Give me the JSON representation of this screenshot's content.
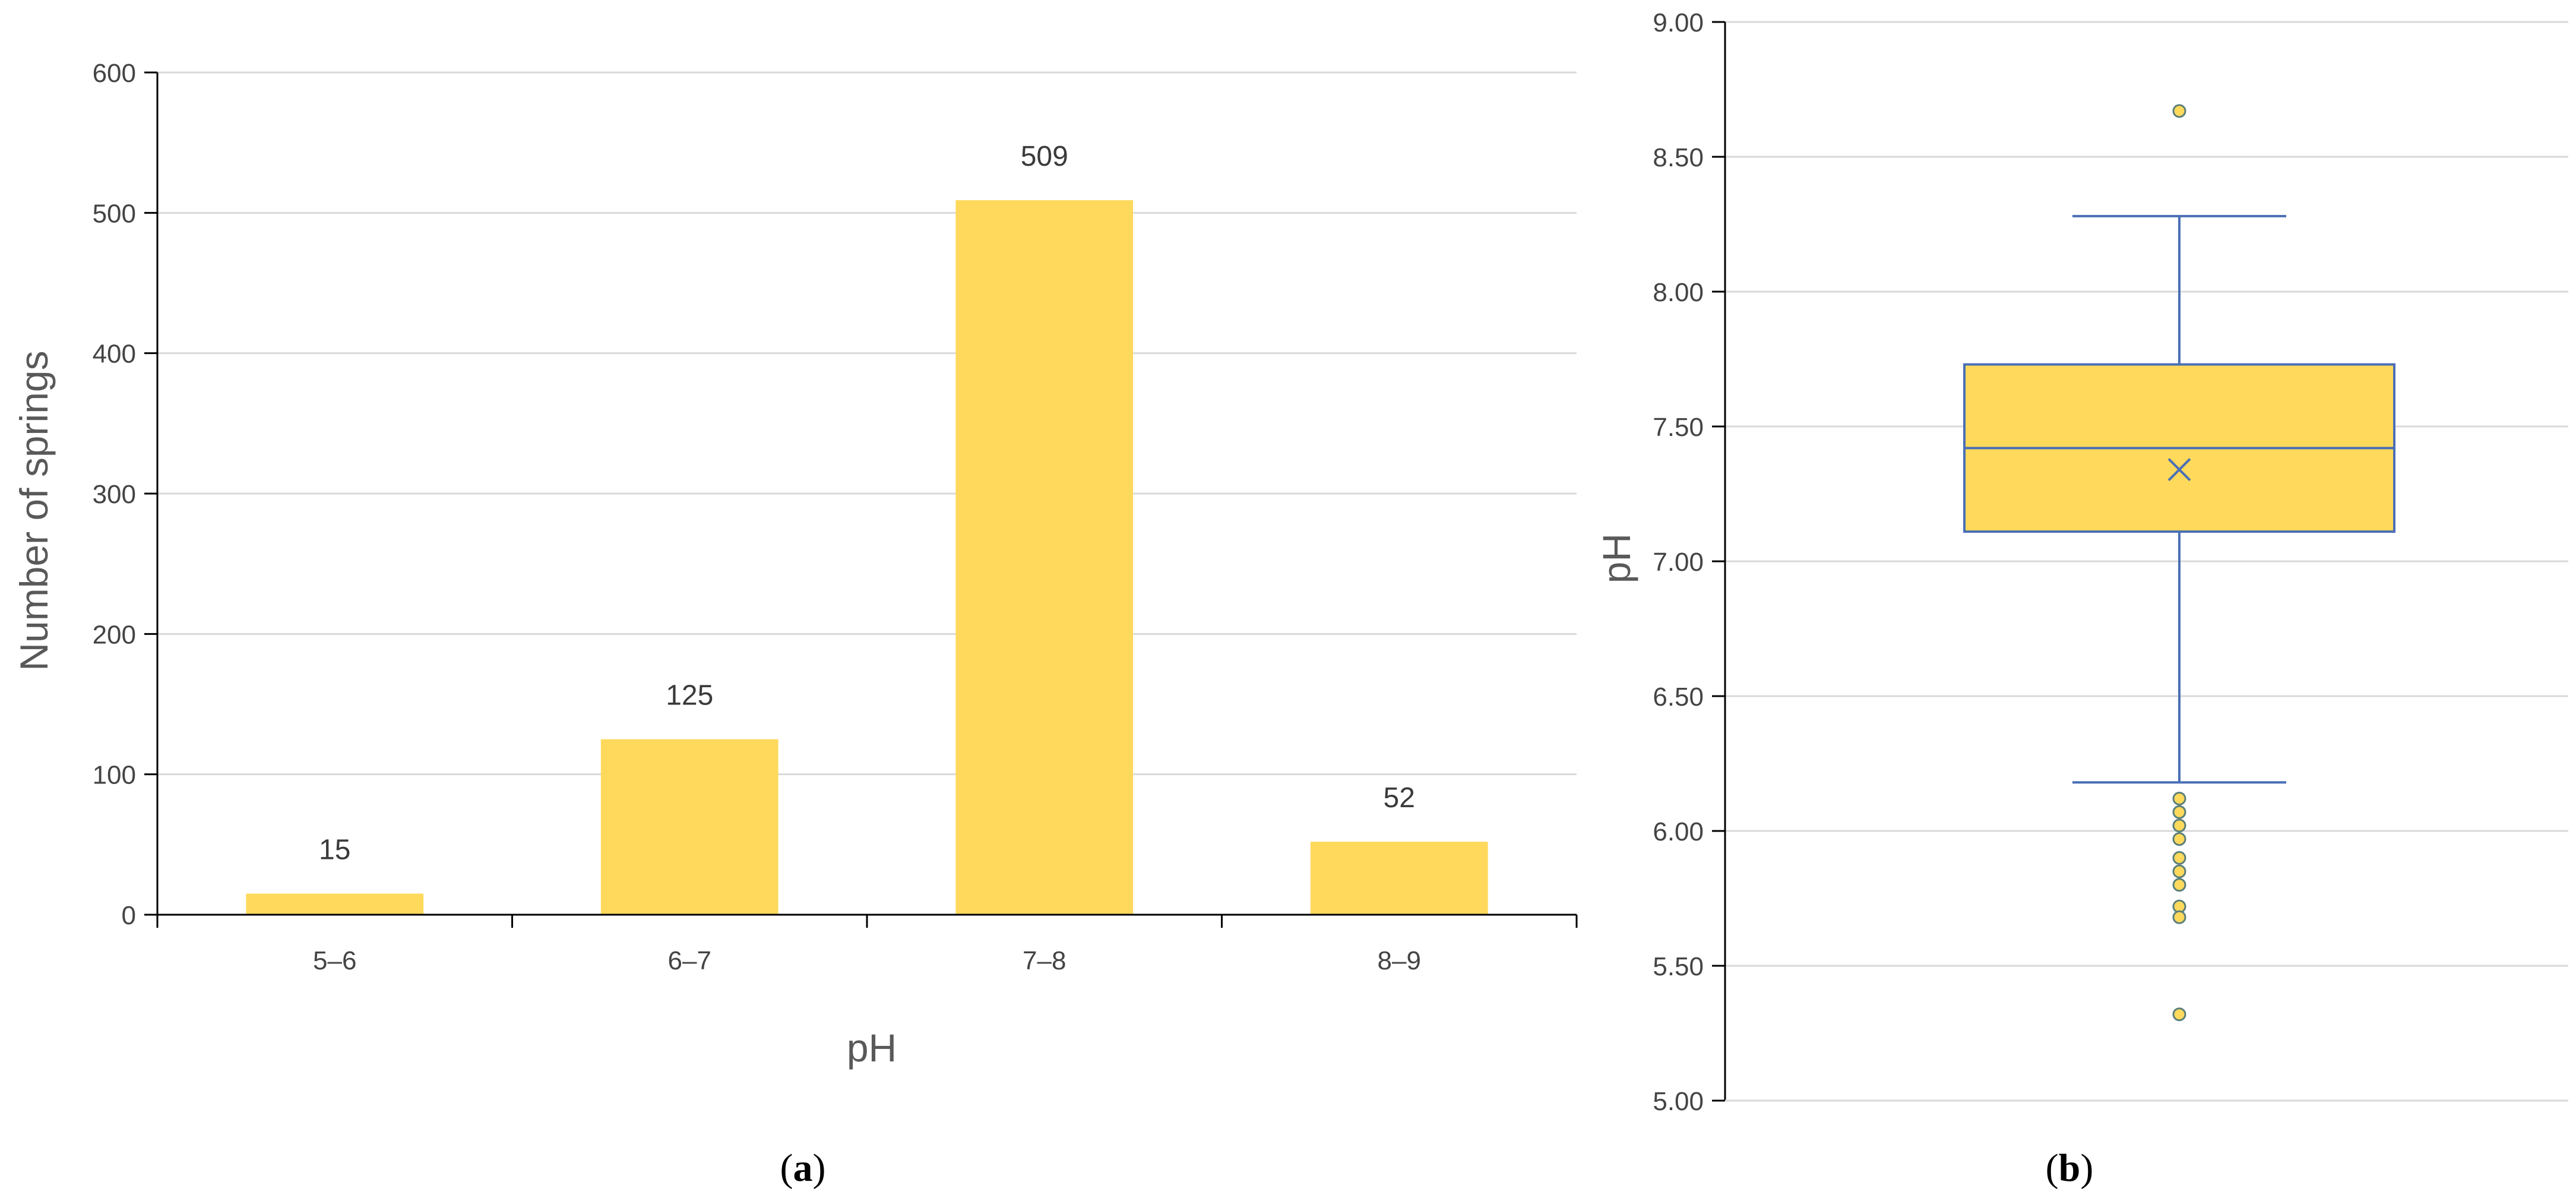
{
  "chart_data": [
    {
      "type": "bar",
      "panel_label": "a",
      "categories": [
        "5–6",
        "6–7",
        "7–8",
        "8–9"
      ],
      "values": [
        15,
        125,
        509,
        52
      ],
      "data_labels": [
        "15",
        "125",
        "509",
        "52"
      ],
      "xlabel": "pH",
      "ylabel": "Number of springs",
      "ylim": [
        0,
        600
      ],
      "yticks": [
        0,
        100,
        200,
        300,
        400,
        500,
        600
      ],
      "ytick_labels": [
        "0",
        "100",
        "200",
        "300",
        "400",
        "500",
        "600"
      ],
      "grid": true,
      "bar_color": "#FFD95C"
    },
    {
      "type": "box",
      "panel_label": "b",
      "ylabel": "pH",
      "ylim": [
        5.0,
        9.0
      ],
      "yticks": [
        5.0,
        5.5,
        6.0,
        6.5,
        7.0,
        7.5,
        8.0,
        8.5,
        9.0
      ],
      "ytick_labels": [
        "5.00",
        "5.50",
        "6.00",
        "6.50",
        "7.00",
        "7.50",
        "8.00",
        "8.50",
        "9.00"
      ],
      "grid": true,
      "q1": 7.11,
      "median": 7.42,
      "q3": 7.73,
      "mean": 7.34,
      "whisker_low": 6.18,
      "whisker_high": 8.28,
      "outliers": [
        8.67,
        6.12,
        6.07,
        6.02,
        5.97,
        5.9,
        5.85,
        5.8,
        5.72,
        5.68,
        5.32
      ],
      "box_color": "#FFD95C",
      "line_color": "#4A6FB5"
    }
  ],
  "labels": {
    "panel_a": "a",
    "panel_b": "b"
  }
}
